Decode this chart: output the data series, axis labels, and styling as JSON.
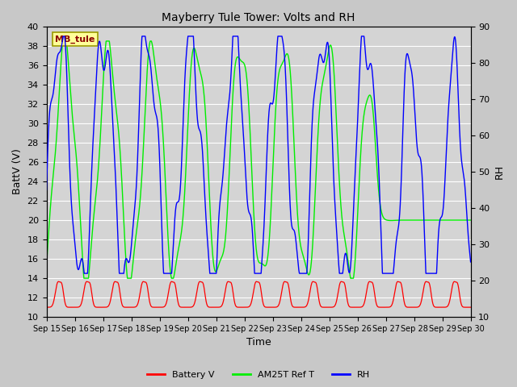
{
  "title": "Mayberry Tule Tower: Volts and RH",
  "xlabel": "Time",
  "ylabel_left": "BattV (V)",
  "ylabel_right": "RH",
  "ylim_left": [
    10,
    40
  ],
  "ylim_right": [
    10,
    90
  ],
  "yticks_left": [
    10,
    12,
    14,
    16,
    18,
    20,
    22,
    24,
    26,
    28,
    30,
    32,
    34,
    36,
    38,
    40
  ],
  "yticks_right": [
    10,
    20,
    30,
    40,
    50,
    60,
    70,
    80,
    90
  ],
  "xtick_labels": [
    "Sep 15",
    "Sep 16",
    "Sep 17",
    "Sep 18",
    "Sep 19",
    "Sep 20",
    "Sep 21",
    "Sep 22",
    "Sep 23",
    "Sep 24",
    "Sep 25",
    "Sep 26",
    "Sep 27",
    "Sep 28",
    "Sep 29",
    "Sep 30"
  ],
  "station_label": "MB_tule",
  "fig_bg_color": "#c8c8c8",
  "plot_bg_color": "#d4d4d4",
  "grid_color": "#ffffff",
  "colors": {
    "battery": "#ff0000",
    "am25t": "#00ee00",
    "rh": "#0000ff"
  },
  "legend_labels": [
    "Battery V",
    "AM25T Ref T",
    "RH"
  ]
}
